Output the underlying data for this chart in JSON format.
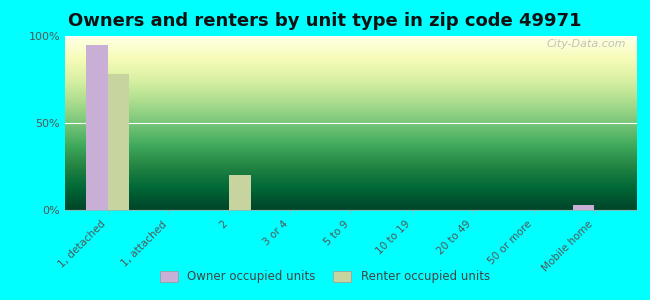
{
  "title": "Owners and renters by unit type in zip code 49971",
  "categories": [
    "1, detached",
    "1, attached",
    "2",
    "3 or 4",
    "5 to 9",
    "10 to 19",
    "20 to 49",
    "50 or more",
    "Mobile home"
  ],
  "owner_values": [
    95,
    0,
    0,
    0,
    0,
    0,
    0,
    0,
    3
  ],
  "renter_values": [
    78,
    0,
    20,
    0,
    0,
    0,
    0,
    0,
    0
  ],
  "owner_color": "#c9aed6",
  "renter_color": "#c8d4a0",
  "background_color": "#00ffff",
  "bar_width": 0.35,
  "ylim": [
    0,
    100
  ],
  "yticks": [
    0,
    50,
    100
  ],
  "ytick_labels": [
    "0%",
    "50%",
    "100%"
  ],
  "title_fontsize": 13,
  "legend_labels": [
    "Owner occupied units",
    "Renter occupied units"
  ],
  "watermark": "City-Data.com"
}
